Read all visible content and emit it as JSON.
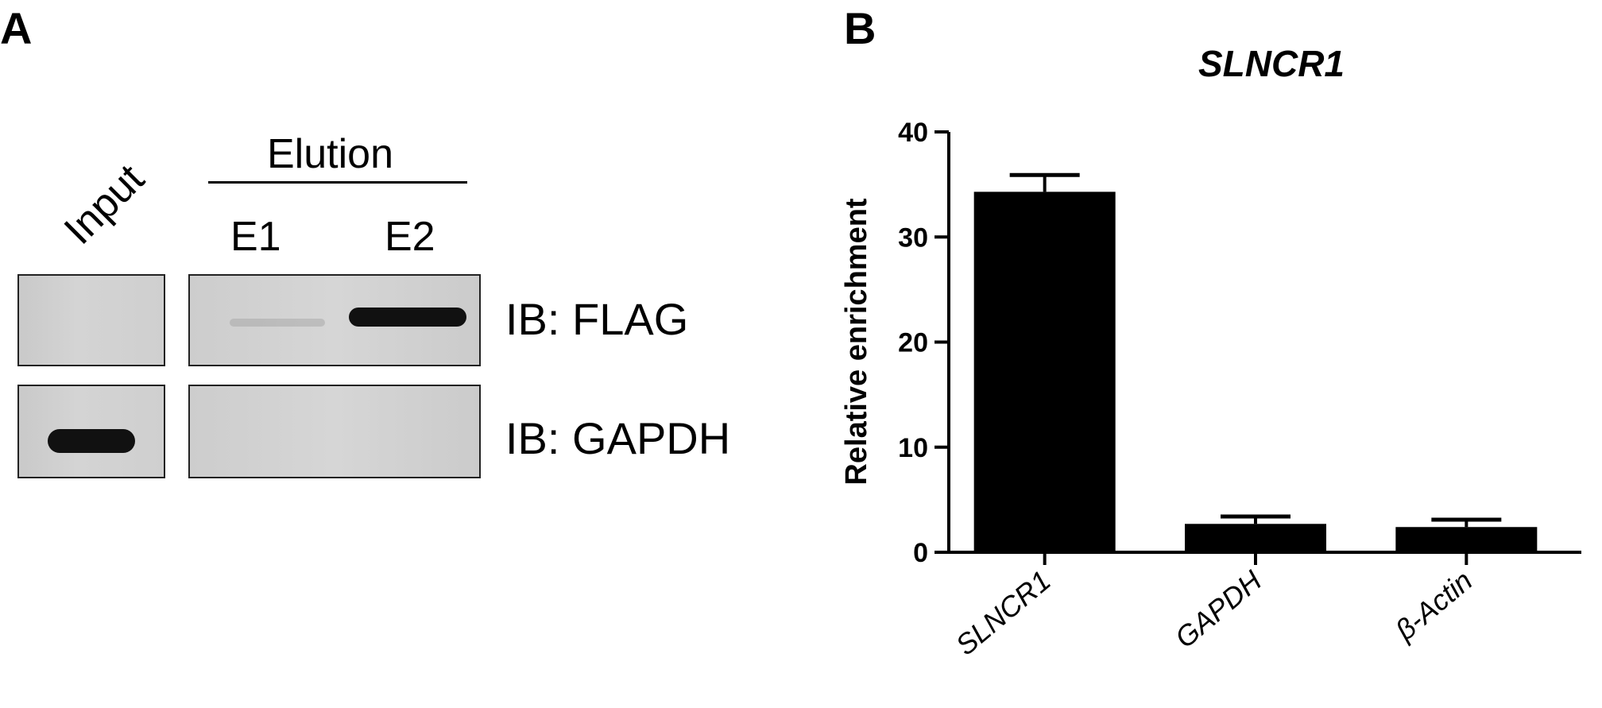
{
  "panels": {
    "a_letter": "A",
    "b_letter": "B"
  },
  "blot": {
    "elution_header": "Elution",
    "lanes": {
      "input": "Input",
      "e1": "E1",
      "e2": "E2"
    },
    "rows": [
      {
        "label": "IB: FLAG"
      },
      {
        "label": "IB: GAPDH"
      }
    ],
    "band_color": "#111111"
  },
  "chart_data": {
    "type": "bar",
    "title": "SLNCR1",
    "ylabel": "Relative enrichment",
    "xlabel": "",
    "categories": [
      "SLNCR1",
      "GAPDH",
      "β-Actin"
    ],
    "values": [
      34.3,
      2.7,
      2.4
    ],
    "errors": [
      1.6,
      0.7,
      0.7
    ],
    "ylim": [
      0,
      40
    ],
    "yticks": [
      0,
      10,
      20,
      30,
      40
    ],
    "ytick_labels": [
      "0",
      "10",
      "20",
      "30",
      "40"
    ],
    "bar_color": "#000000",
    "grid": false,
    "legend": "none"
  }
}
